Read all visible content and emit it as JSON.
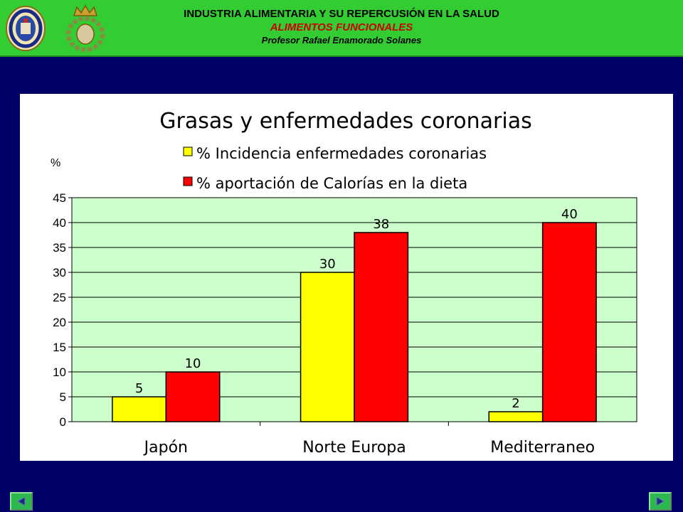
{
  "header": {
    "line1": "INDUSTRIA ALIMENTARIA Y SU REPERCUSIÓN EN LA SALUD",
    "line2": "ALIMENTOS FUNCIONALES",
    "line3": "Profesor Rafael Enamorado Solanes"
  },
  "colors": {
    "header_bg": "#33cc33",
    "page_bg": "#000066",
    "plot_bg": "#ccffcc",
    "subtitle": "#cc0000"
  },
  "icons": {
    "left_logo": "university-seal-icon",
    "right_logo": "crown-wreath-icon",
    "nav_prev": "arrow-left-icon",
    "nav_next": "arrow-right-icon"
  },
  "chart_data": {
    "type": "bar",
    "title": "Grasas y enfermedades coronarias",
    "ylabel": "%",
    "xlabel": "",
    "categories": [
      "Japón",
      "Norte Europa",
      "Mediterraneo"
    ],
    "series": [
      {
        "name": "% Incidencia enfermedades coronarias",
        "color": "#ffff00",
        "values": [
          5,
          30,
          2
        ]
      },
      {
        "name": "% aportación de Calorías en la dieta",
        "color": "#ff0000",
        "values": [
          10,
          38,
          40
        ]
      }
    ],
    "ylim": [
      0,
      45
    ],
    "yticks": [
      0,
      5,
      10,
      15,
      20,
      25,
      30,
      35,
      40,
      45
    ],
    "grid": true,
    "legend": "top"
  }
}
